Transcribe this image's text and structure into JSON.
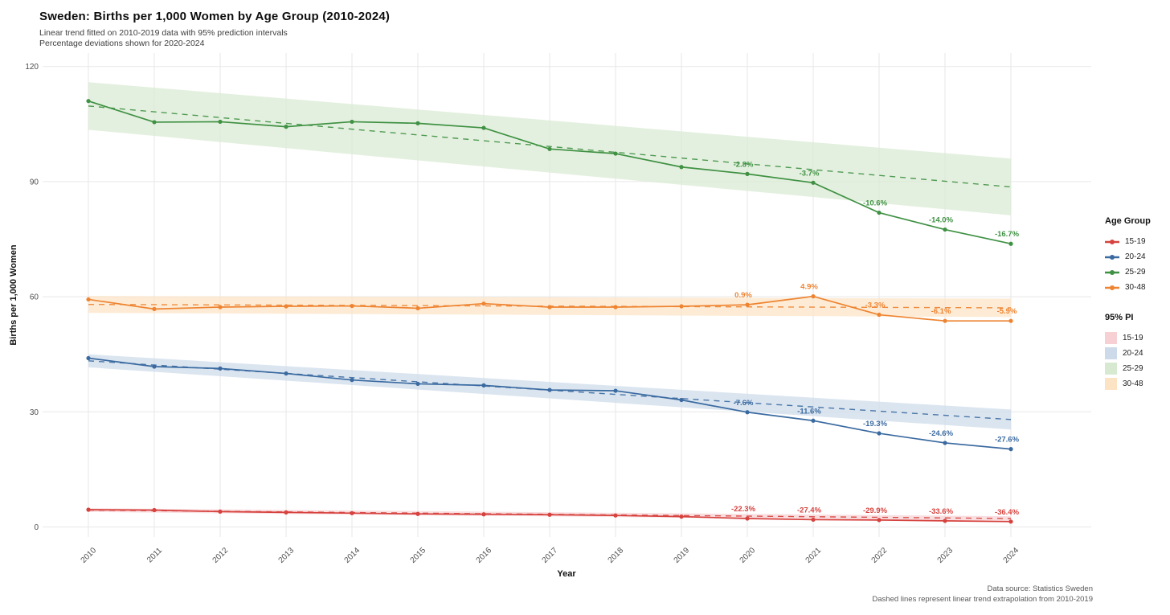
{
  "chart_data": {
    "type": "line",
    "title": "Sweden: Births per 1,000 Women by Age Group (2010-2024)",
    "subtitle": [
      "Linear trend fitted on 2010-2019 data with 95% prediction intervals",
      "Percentage deviations shown for 2020-2024"
    ],
    "caption": [
      "Data source: Statistics Sweden",
      "Dashed lines represent linear trend extrapolation from 2010-2019"
    ],
    "xlabel": "Year",
    "ylabel": "Births per 1,000 Women",
    "x": [
      2010,
      2011,
      2012,
      2013,
      2014,
      2015,
      2016,
      2017,
      2018,
      2019,
      2020,
      2021,
      2022,
      2023,
      2024
    ],
    "yticks": [
      0,
      30,
      60,
      90,
      120
    ],
    "ylim": [
      0,
      120
    ],
    "grid": true,
    "legend_position": "right",
    "legend_titles": {
      "series": "Age Group",
      "interval": "95% PI"
    },
    "deviation_years": [
      2020,
      2021,
      2022,
      2023,
      2024
    ],
    "trend_years": [
      2010,
      2024
    ],
    "series": [
      {
        "name": "15-19",
        "color": "#d6423e",
        "band_color": "#f6d0d3",
        "values": [
          4.5,
          4.4,
          4.0,
          3.8,
          3.6,
          3.4,
          3.3,
          3.2,
          3.0,
          2.7,
          2.2,
          1.9,
          1.8,
          1.6,
          1.4
        ],
        "trend": {
          "start": 4.4,
          "end": 2.2
        },
        "pi_halfwidth": {
          "start": 0.5,
          "end": 0.6
        },
        "deviation_labels": [
          "-22.3%",
          "-27.4%",
          "-29.9%",
          "-33.6%",
          "-36.4%"
        ]
      },
      {
        "name": "20-24",
        "color": "#3a6aa0",
        "band_color": "#ccdae9",
        "values": [
          44.0,
          41.8,
          41.3,
          40.0,
          38.3,
          37.3,
          36.9,
          35.7,
          35.5,
          33.1,
          29.9,
          27.7,
          24.4,
          21.9,
          20.3
        ],
        "trend": {
          "start": 43.3,
          "end": 28.0
        },
        "pi_halfwidth": {
          "start": 1.7,
          "end": 2.6
        },
        "deviation_labels": [
          "-7.6%",
          "-11.6%",
          "-19.3%",
          "-24.6%",
          "-27.6%"
        ]
      },
      {
        "name": "25-29",
        "color": "#3f9143",
        "band_color": "#d8e9d2",
        "values": [
          111.0,
          105.5,
          105.6,
          104.3,
          105.6,
          105.2,
          104.0,
          98.5,
          97.3,
          93.8,
          92.0,
          89.7,
          81.9,
          77.5,
          73.8
        ],
        "trend": {
          "start": 109.7,
          "end": 88.6
        },
        "pi_halfwidth": {
          "start": 6.2,
          "end": 7.4
        },
        "deviation_labels": [
          "-2.8%",
          "-3.7%",
          "-10.6%",
          "-14.0%",
          "-16.7%"
        ]
      },
      {
        "name": "30-48",
        "color": "#ee8431",
        "band_color": "#fce3c3",
        "values": [
          59.3,
          56.8,
          57.3,
          57.5,
          57.6,
          57.0,
          58.2,
          57.3,
          57.3,
          57.5,
          57.9,
          60.1,
          55.3,
          53.7,
          53.7
        ],
        "trend": {
          "start": 58.0,
          "end": 57.1
        },
        "pi_halfwidth": {
          "start": 2.2,
          "end": 2.4
        },
        "deviation_labels": [
          "0.9%",
          "4.9%",
          "-3.3%",
          "-6.1%",
          "-5.9%"
        ]
      }
    ]
  }
}
